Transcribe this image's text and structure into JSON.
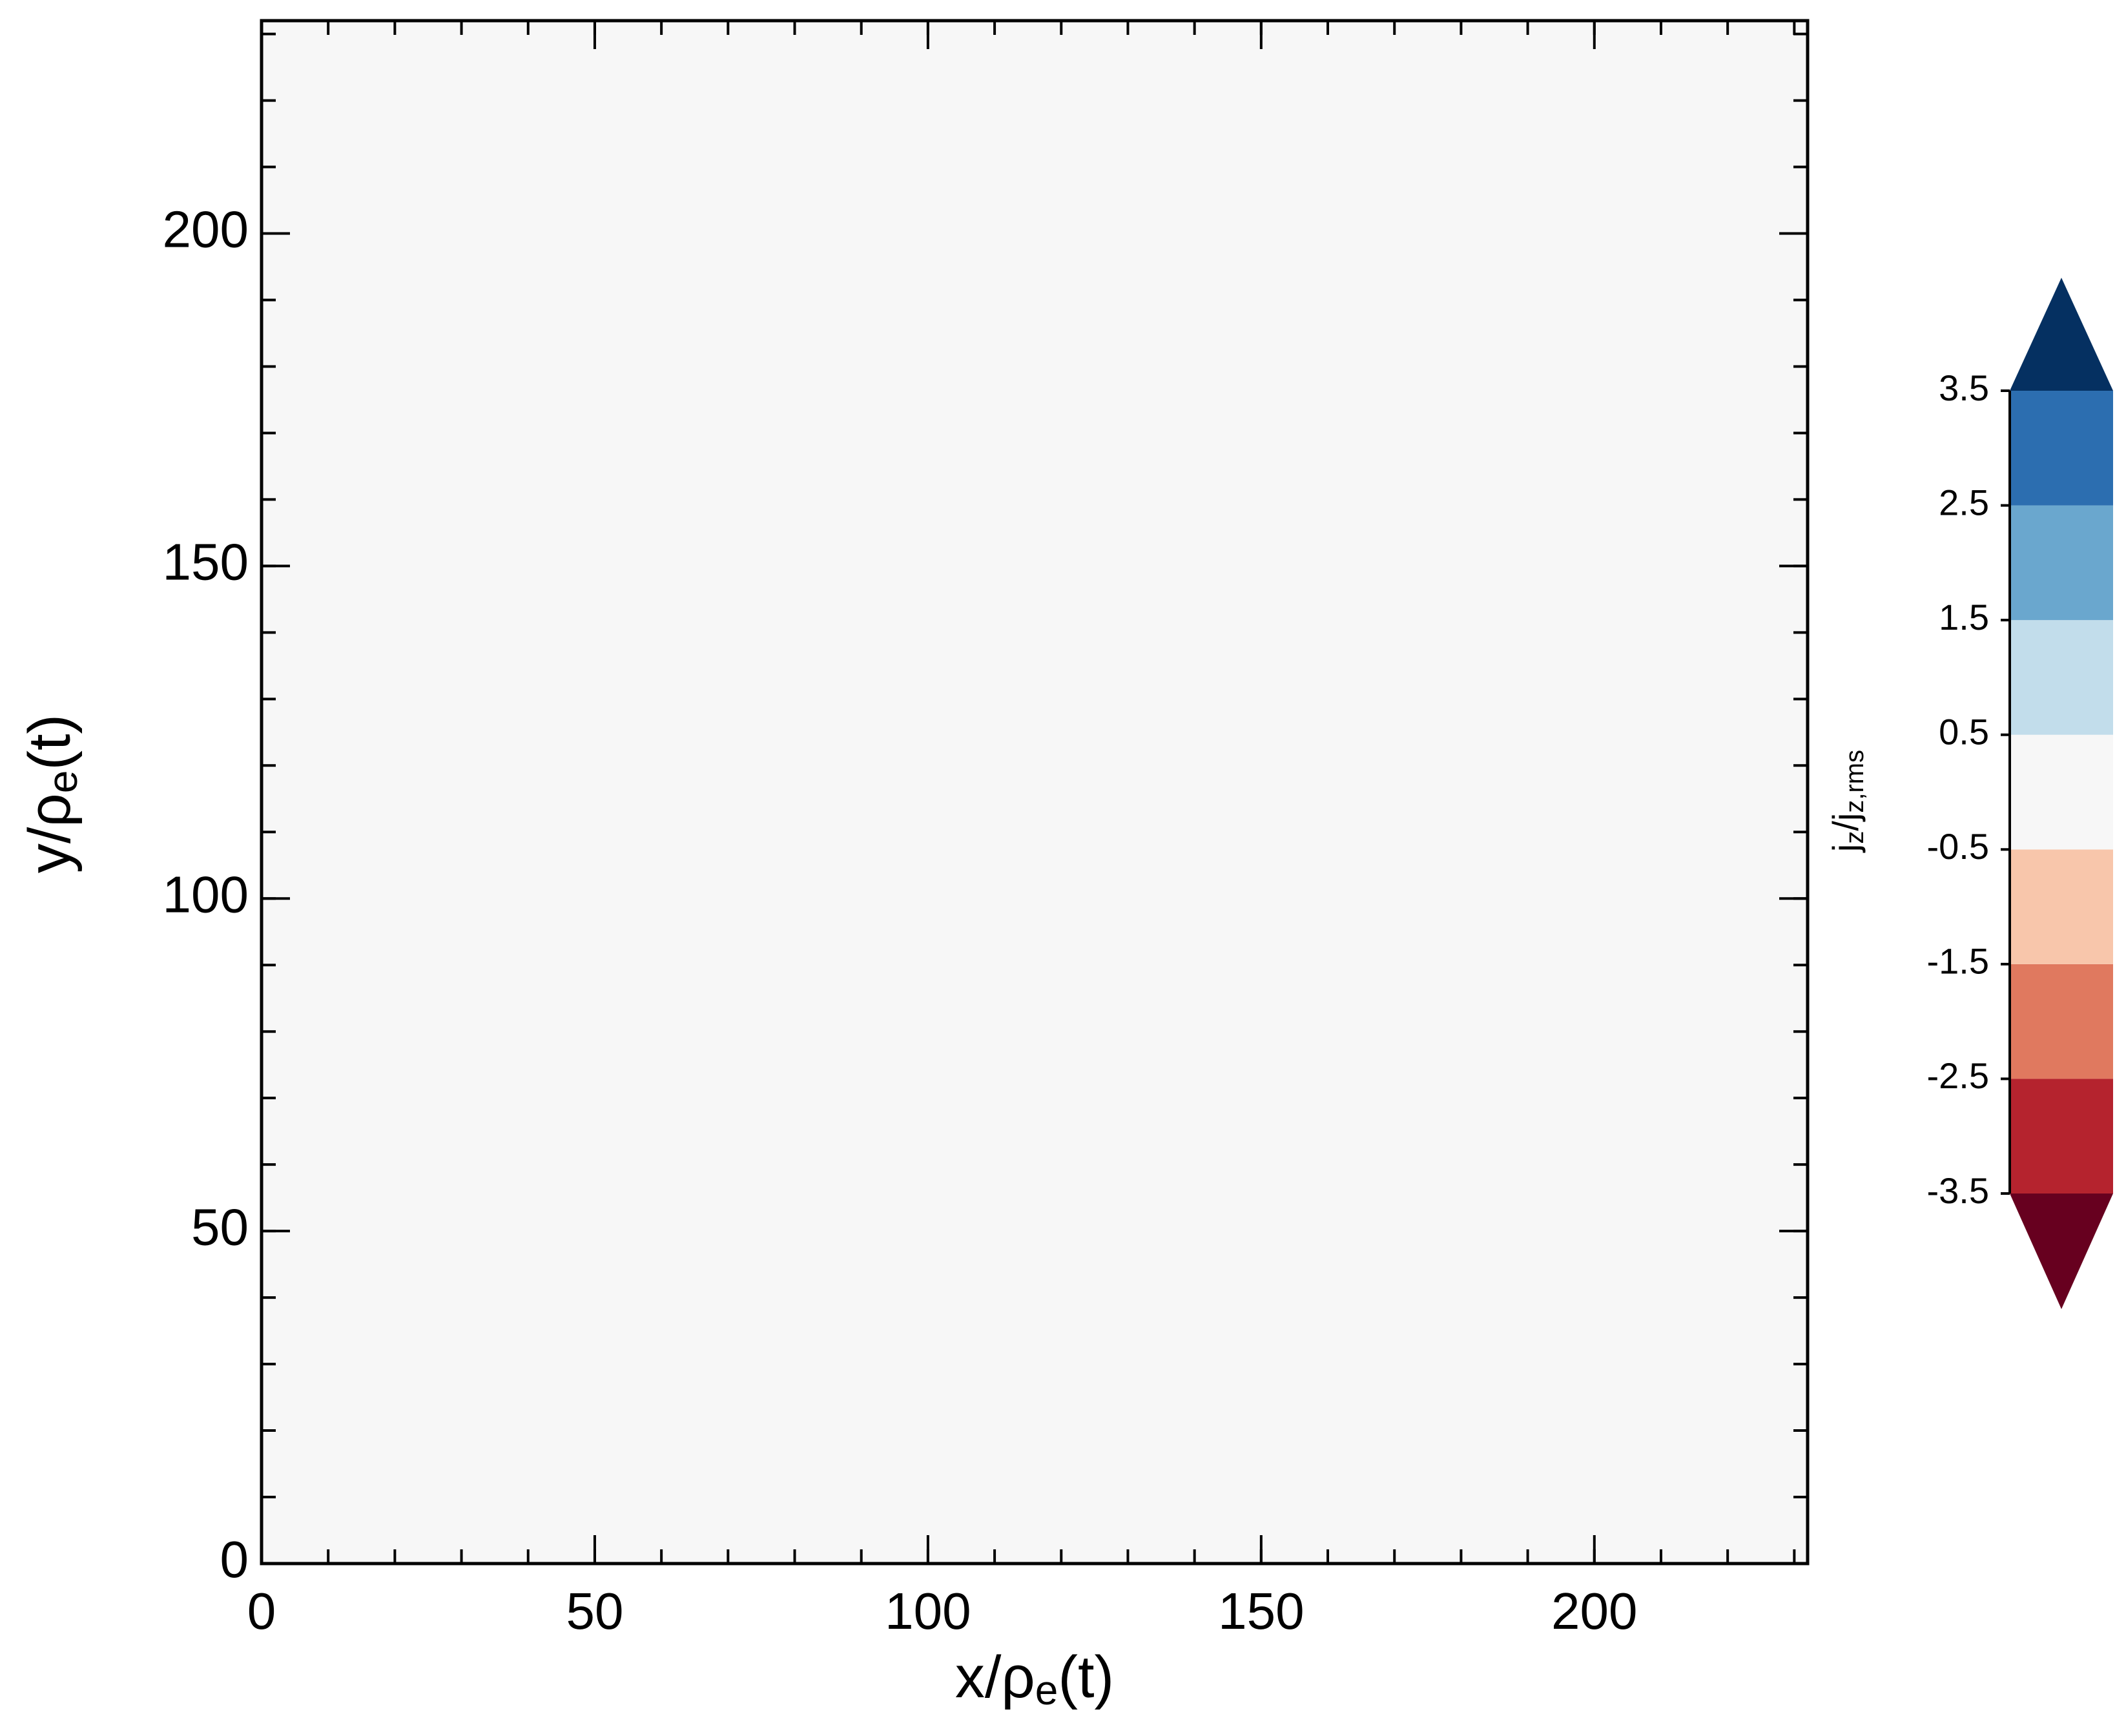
{
  "chart_data": {
    "type": "contour",
    "x_label": {
      "main": "x/ρ",
      "sub": "e",
      "tail": "(t)"
    },
    "y_label": {
      "main": "y/ρ",
      "sub": "e",
      "tail": "(t)"
    },
    "xlim": [
      0,
      232
    ],
    "ylim": [
      0,
      232
    ],
    "xticks": [
      0,
      50,
      100,
      150,
      200
    ],
    "yticks": [
      0,
      50,
      100,
      150,
      200
    ],
    "minor_ticks": 10,
    "colorbar": {
      "label": {
        "a": "j",
        "a_sub": "z",
        "b": "/j",
        "b_sub": "z,rms"
      },
      "levels": [
        -3.5,
        -2.5,
        -1.5,
        -0.5,
        0.5,
        1.5,
        2.5,
        3.5
      ],
      "colors": [
        "#b5232e",
        "#e0795f",
        "#f8c6ab",
        "#f7f7f7",
        "#c2ddeb",
        "#6aa7ce",
        "#2c6eb0"
      ],
      "under_color": "#67001f",
      "over_color": "#053061"
    }
  }
}
